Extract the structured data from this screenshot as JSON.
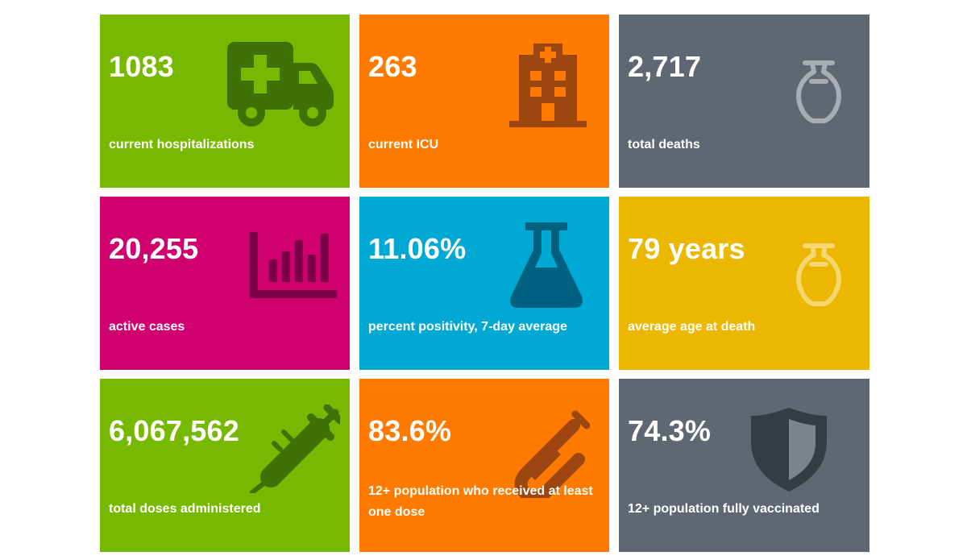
{
  "colors": {
    "green": "#77b800",
    "orange": "#ff7b00",
    "gray": "#5f6872",
    "pink": "#d1006f",
    "blue": "#00a8d4",
    "yellow": "#ebb700"
  },
  "tiles": [
    {
      "value": "1083",
      "label": "current hospitalizations",
      "icon": "ambulance-icon"
    },
    {
      "value": "263",
      "label": "current ICU",
      "icon": "hospital-icon"
    },
    {
      "value": "2,717",
      "label": "total deaths",
      "icon": "urn-icon"
    },
    {
      "value": "20,255",
      "label": "active cases",
      "icon": "bar-chart-icon"
    },
    {
      "value": "11.06%",
      "label": "percent positivity, 7-day average",
      "icon": "flask-icon"
    },
    {
      "value": "79 years",
      "label": "average age at death",
      "icon": "urn-icon"
    },
    {
      "value": "6,067,562",
      "label": "total doses administered",
      "icon": "syringe-icon"
    },
    {
      "value": "83.6%",
      "label": "12+ population who received at least one dose",
      "icon": "test-tube-icon"
    },
    {
      "value": "74.3%",
      "label": "12+ population fully vaccinated",
      "icon": "shield-icon"
    }
  ]
}
